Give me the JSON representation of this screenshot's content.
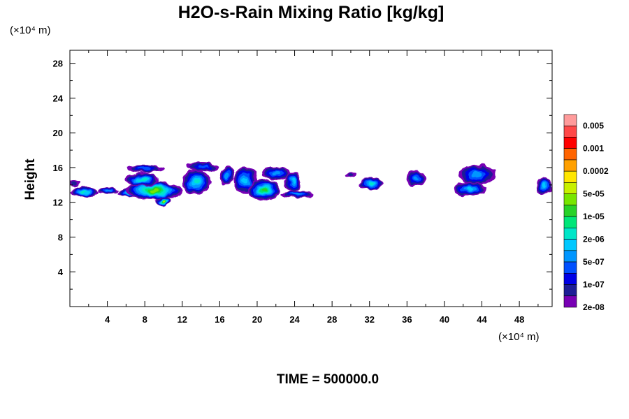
{
  "chart_data": {
    "type": "heatmap",
    "title": "H2O-s-Rain Mixing Ratio [kg/kg]",
    "ylabel": "Height",
    "x_unit": "(×10⁴ m)",
    "y_unit": "(×10⁴ m)",
    "xlim": [
      0,
      51.5
    ],
    "ylim": [
      0,
      29.5
    ],
    "x_ticks": [
      "4",
      "8",
      "12",
      "16",
      "20",
      "24",
      "28",
      "32",
      "36",
      "40",
      "44",
      "48"
    ],
    "y_ticks": [
      "4",
      "8",
      "12",
      "16",
      "20",
      "24",
      "28"
    ],
    "colorbar": {
      "labels": [
        "0.005",
        "0.001",
        "0.0002",
        "5e-05",
        "1e-05",
        "2e-06",
        "5e-07",
        "1e-07",
        "2e-08"
      ],
      "colors": [
        "#ff9b9b",
        "#ff4848",
        "#ff0000",
        "#ff6400",
        "#ffa000",
        "#ffe600",
        "#c8f000",
        "#78e600",
        "#28d228",
        "#00e678",
        "#00e6c8",
        "#00c8ff",
        "#0096ff",
        "#0050ff",
        "#0000e6",
        "#1e1e96",
        "#7800b4"
      ]
    },
    "cloud_regions": [
      {
        "x": [
          0.0,
          1.0
        ],
        "y": [
          13.8,
          14.6
        ],
        "max_level": 1
      },
      {
        "x": [
          0.0,
          3.0
        ],
        "y": [
          12.6,
          13.8
        ],
        "max_level": 6
      },
      {
        "x": [
          3.0,
          5.2
        ],
        "y": [
          13.0,
          13.7
        ],
        "max_level": 4
      },
      {
        "x": [
          5.2,
          8.5
        ],
        "y": [
          12.6,
          13.6
        ],
        "max_level": 9
      },
      {
        "x": [
          6.0,
          12.0
        ],
        "y": [
          12.3,
          14.4
        ],
        "max_level": 9
      },
      {
        "x": [
          9.2,
          10.8
        ],
        "y": [
          11.6,
          12.6
        ],
        "max_level": 10
      },
      {
        "x": [
          6.0,
          9.5
        ],
        "y": [
          13.8,
          15.4
        ],
        "max_level": 6
      },
      {
        "x": [
          6.0,
          10.0
        ],
        "y": [
          15.4,
          16.3
        ],
        "max_level": 3
      },
      {
        "x": [
          12.0,
          15.0
        ],
        "y": [
          12.9,
          15.8
        ],
        "max_level": 6
      },
      {
        "x": [
          12.5,
          15.8
        ],
        "y": [
          15.6,
          16.6
        ],
        "max_level": 3
      },
      {
        "x": [
          16.0,
          17.5
        ],
        "y": [
          14.0,
          16.2
        ],
        "max_level": 4
      },
      {
        "x": [
          17.5,
          20.0
        ],
        "y": [
          13.0,
          16.1
        ],
        "max_level": 5
      },
      {
        "x": [
          19.0,
          22.5
        ],
        "y": [
          12.2,
          14.6
        ],
        "max_level": 8
      },
      {
        "x": [
          20.5,
          23.5
        ],
        "y": [
          14.6,
          16.1
        ],
        "max_level": 4
      },
      {
        "x": [
          23.0,
          24.7
        ],
        "y": [
          13.2,
          15.6
        ],
        "max_level": 5
      },
      {
        "x": [
          22.5,
          26.0
        ],
        "y": [
          12.5,
          13.3
        ],
        "max_level": 4
      },
      {
        "x": [
          29.5,
          30.6
        ],
        "y": [
          14.8,
          15.6
        ],
        "max_level": 1
      },
      {
        "x": [
          31.0,
          33.5
        ],
        "y": [
          13.5,
          14.8
        ],
        "max_level": 6
      },
      {
        "x": [
          35.8,
          38.0
        ],
        "y": [
          13.9,
          15.6
        ],
        "max_level": 4
      },
      {
        "x": [
          41.5,
          45.5
        ],
        "y": [
          14.0,
          16.3
        ],
        "max_level": 4
      },
      {
        "x": [
          41.0,
          44.5
        ],
        "y": [
          12.7,
          14.3
        ],
        "max_level": 5
      },
      {
        "x": [
          49.8,
          51.5
        ],
        "y": [
          12.8,
          14.9
        ],
        "max_level": 5
      }
    ]
  },
  "footer": {
    "time_label": "TIME = 500000.0"
  }
}
